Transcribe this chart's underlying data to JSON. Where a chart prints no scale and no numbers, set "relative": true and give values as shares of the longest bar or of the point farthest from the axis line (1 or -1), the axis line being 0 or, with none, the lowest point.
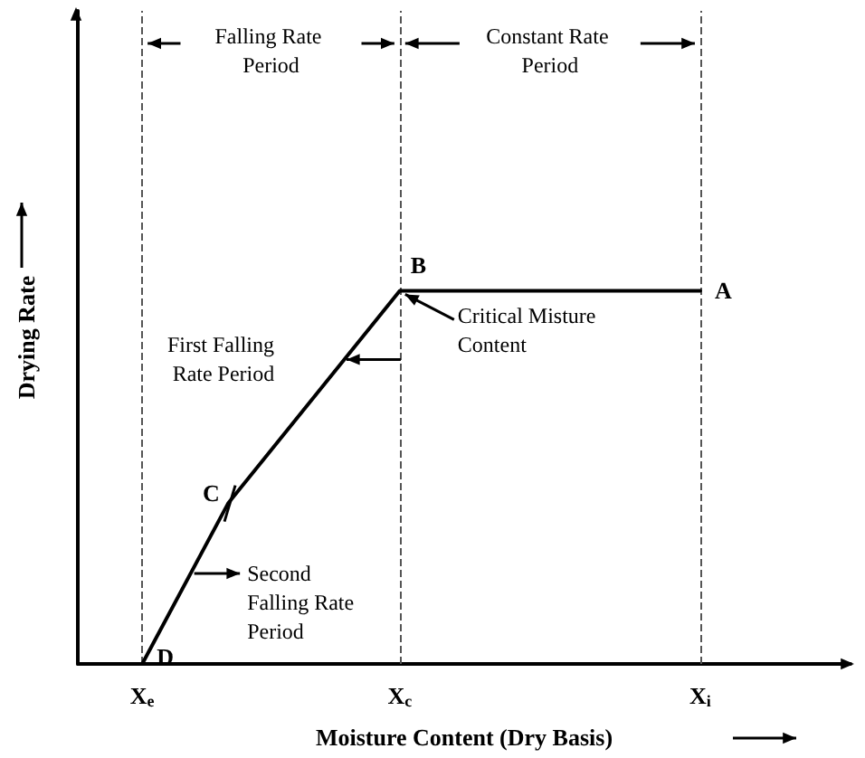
{
  "chart_data": {
    "type": "line",
    "relative": true,
    "xlabel": "Moisture Content (Dry Basis)",
    "ylabel": "Drying Rate",
    "categories": [
      null,
      "X$_{e}$",
      null,
      null,
      null,
      null,
      null,
      "X$_{c}$",
      null,
      null,
      null,
      null,
      null,
      null,
      "X$_{i}$",
      null,
      null,
      null
    ],
    "tick_labels": "x",
    "series": [
      {
        "color": "#000000",
        "values": [
          null,
          0,
          null,
          0.43,
          null,
          null,
          null,
          1,
          null,
          null,
          null,
          null,
          null,
          null,
          1,
          null,
          null,
          null
        ]
      }
    ],
    "marker": "none",
    "line_style": "solid",
    "grid": false,
    "legend": false,
    "ref_lines": [
      {
        "axis": "x",
        "value": "X$_{e}$",
        "line_style": "dashed",
        "color": "#555555"
      },
      {
        "axis": "x",
        "value": "X$_{c}$",
        "line_style": "dashed",
        "color": "#555555"
      },
      {
        "axis": "x",
        "value": "X$_{i}$",
        "line_style": "dashed",
        "color": "#555555"
      }
    ],
    "annotations": [
      {
        "text": "A",
        "x": "X$_{i}$",
        "y": 1
      },
      {
        "text": "B",
        "x": "X$_{c}$",
        "y": 1
      },
      "C",
      {
        "text": "D",
        "x": "X$_{e}$",
        "y": 0
      },
      {
        "text": "Critical Misture Content",
        "x": "X$_{c}$",
        "y": 1
      },
      "First Falling Rate Period",
      "Second Falling Rate Period",
      "Falling Rate Period",
      "Constant Rate Period"
    ]
  }
}
